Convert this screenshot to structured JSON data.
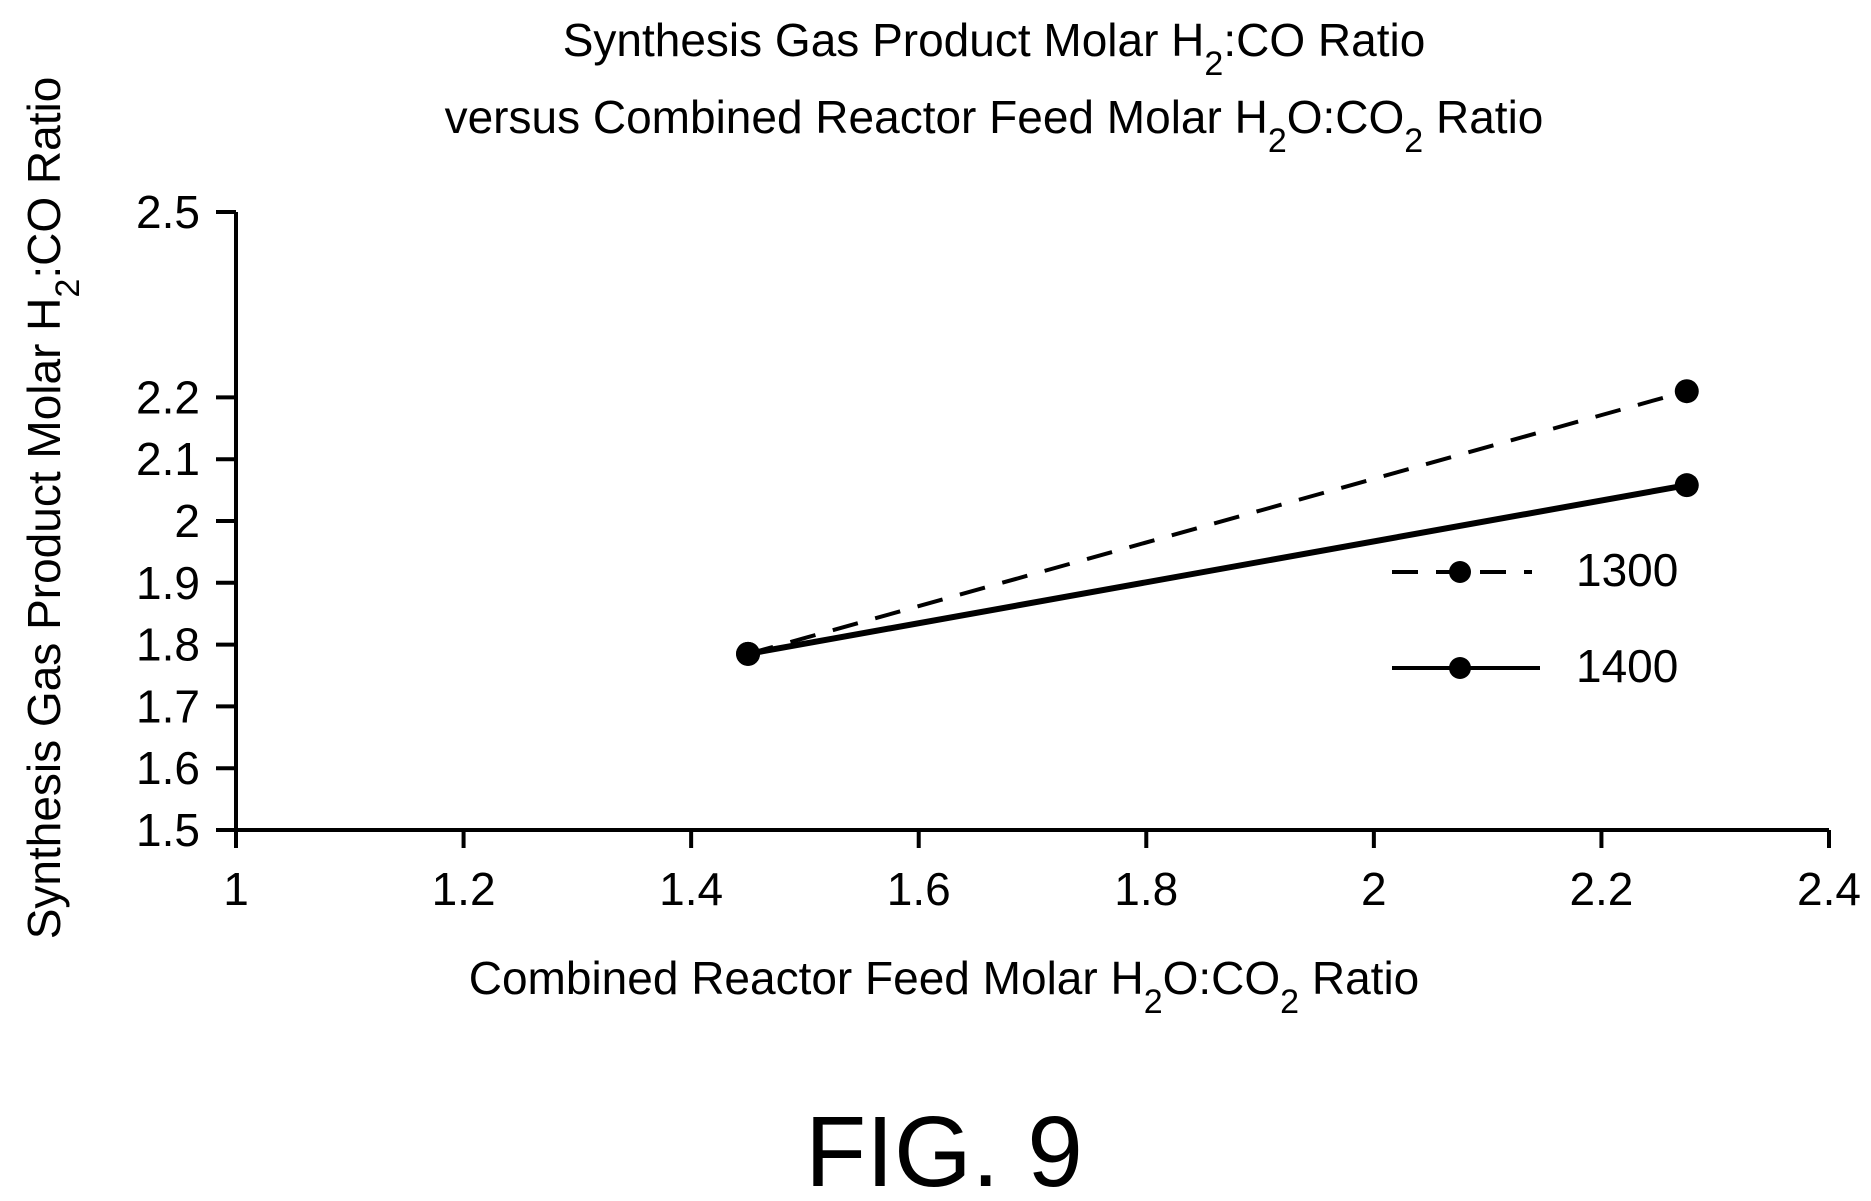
{
  "chart_data": {
    "type": "line",
    "title": {
      "line1": {
        "pre": "Synthesis Gas Product Molar H",
        "sub1": "2",
        "post": ":CO Ratio"
      },
      "line2": {
        "pre": "versus Combined Reactor Feed Molar H",
        "sub1": "2",
        "mid": "O:CO",
        "sub2": "2",
        "post": " Ratio"
      }
    },
    "xlabel": {
      "pre": "Combined Reactor Feed Molar H",
      "sub1": "2",
      "mid": "O:CO",
      "sub2": "2",
      "post": " Ratio"
    },
    "ylabel": {
      "pre": "Synthesis Gas Product Molar H",
      "sub1": "2",
      "post": ":CO Ratio"
    },
    "xlim": [
      1,
      2.4
    ],
    "ylim": [
      1.5,
      2.5
    ],
    "x_ticks": [
      {
        "value": 1,
        "label": "1"
      },
      {
        "value": 1.2,
        "label": "1.2"
      },
      {
        "value": 1.4,
        "label": "1.4"
      },
      {
        "value": 1.6,
        "label": "1.6"
      },
      {
        "value": 1.8,
        "label": "1.8"
      },
      {
        "value": 2,
        "label": "2"
      },
      {
        "value": 2.2,
        "label": "2.2"
      },
      {
        "value": 2.4,
        "label": "2.4"
      }
    ],
    "y_ticks": [
      {
        "value": 1.5,
        "label": "1.5"
      },
      {
        "value": 1.6,
        "label": "1.6"
      },
      {
        "value": 1.7,
        "label": "1.7"
      },
      {
        "value": 1.8,
        "label": "1.8"
      },
      {
        "value": 1.9,
        "label": "1.9"
      },
      {
        "value": 2.0,
        "label": "2"
      },
      {
        "value": 2.1,
        "label": "2.1"
      },
      {
        "value": 2.2,
        "label": "2.2"
      },
      {
        "value": 2.5,
        "label": "2.5"
      }
    ],
    "grid": false,
    "legend_position": "right",
    "series": [
      {
        "name": "1300",
        "style": "dashed",
        "color": "#000000",
        "x": [
          1.45,
          2.275
        ],
        "y": [
          1.785,
          2.21
        ]
      },
      {
        "name": "1400",
        "style": "solid",
        "color": "#000000",
        "x": [
          1.45,
          2.275
        ],
        "y": [
          1.785,
          2.058
        ]
      }
    ]
  },
  "figure_label": "FIG. 9"
}
